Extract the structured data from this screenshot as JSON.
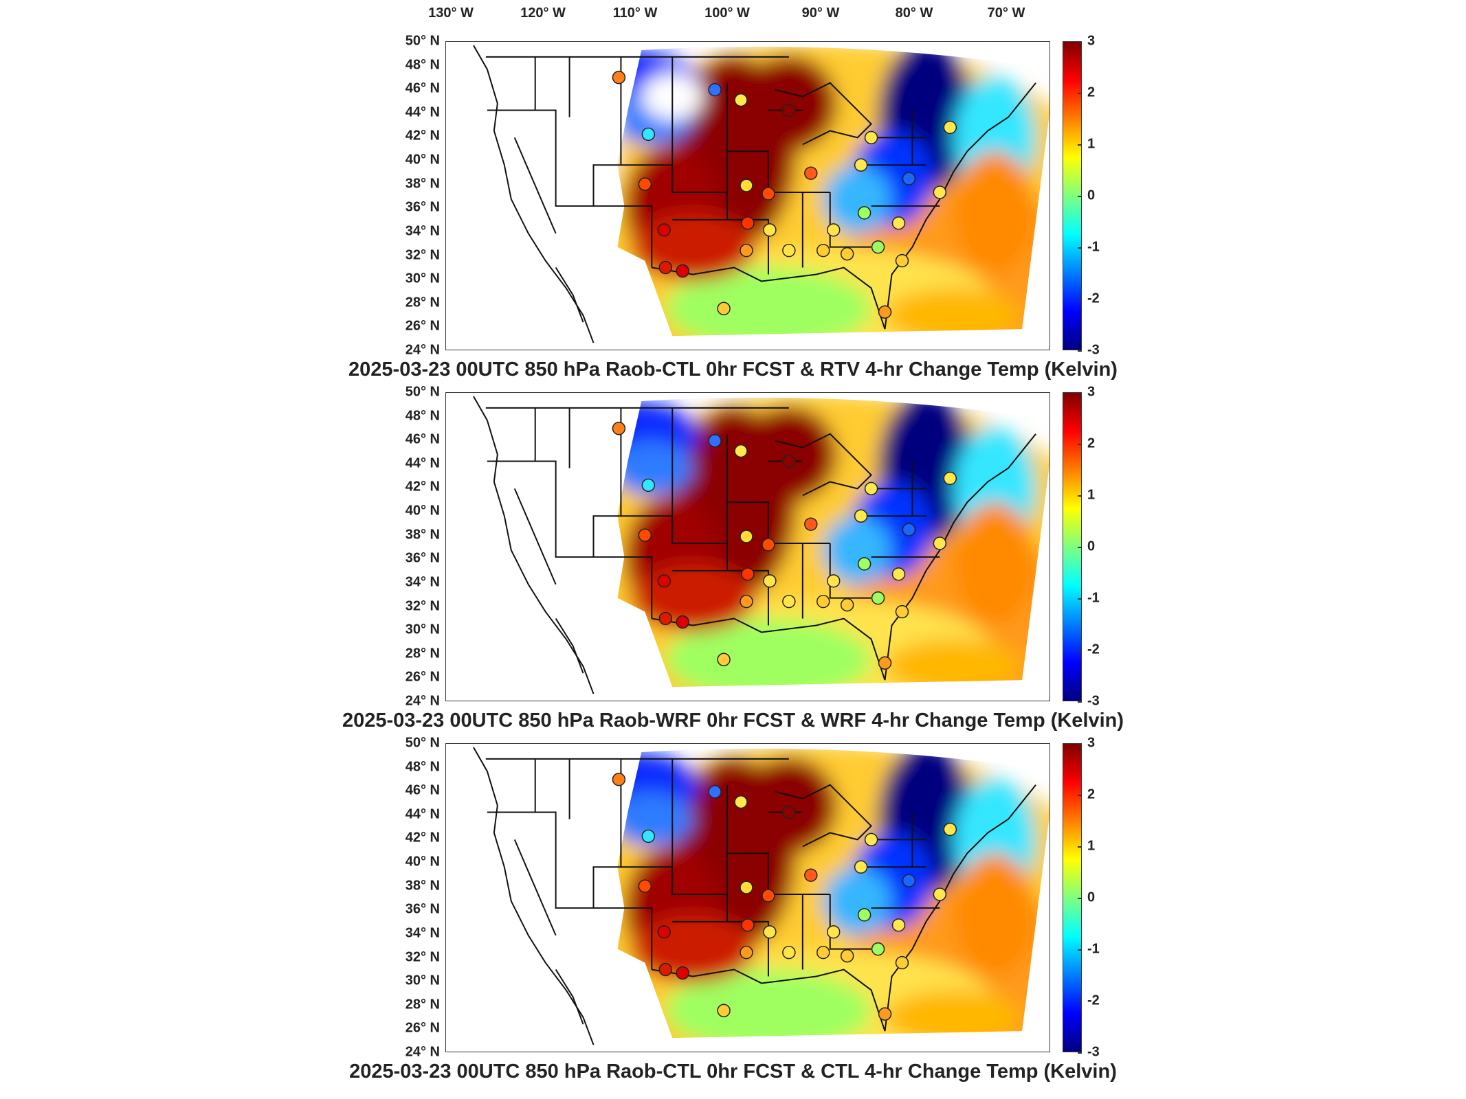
{
  "figure": {
    "longitude_labels": [
      "130° W",
      "120° W",
      "110° W",
      "100° W",
      "90° W",
      "80° W",
      "70° W"
    ],
    "latitude_labels": [
      "50° N",
      "48° N",
      "46° N",
      "44° N",
      "42° N",
      "40° N",
      "38° N",
      "36° N",
      "34° N",
      "32° N",
      "30° N",
      "28° N",
      "26° N",
      "24° N"
    ],
    "colorbar_ticks": [
      "3",
      "2",
      "1",
      "0",
      "-1",
      "-2",
      "-3"
    ],
    "colorbar_range": [
      -3,
      3
    ],
    "colormap": "jet",
    "colors": {
      "dark_red": "#7f0000",
      "red": "#ff0000",
      "orange": "#ff7f00",
      "yellow": "#ffff00",
      "green": "#7fff7f",
      "cyan": "#00ffff",
      "blue": "#0000ff",
      "dark_blue": "#00007f"
    }
  },
  "panels": [
    {
      "title": "2025-03-23 00UTC 850 hPa Raob-CTL 0hr FCST & RTV 4-hr Change Temp (Kelvin)"
    },
    {
      "title": "2025-03-23 00UTC 850 hPa Raob-WRF 0hr FCST & WRF 4-hr Change Temp (Kelvin)"
    },
    {
      "title": "2025-03-23 00UTC 850 hPa Raob-CTL 0hr FCST & CTL 4-hr Change Temp (Kelvin)"
    }
  ]
}
